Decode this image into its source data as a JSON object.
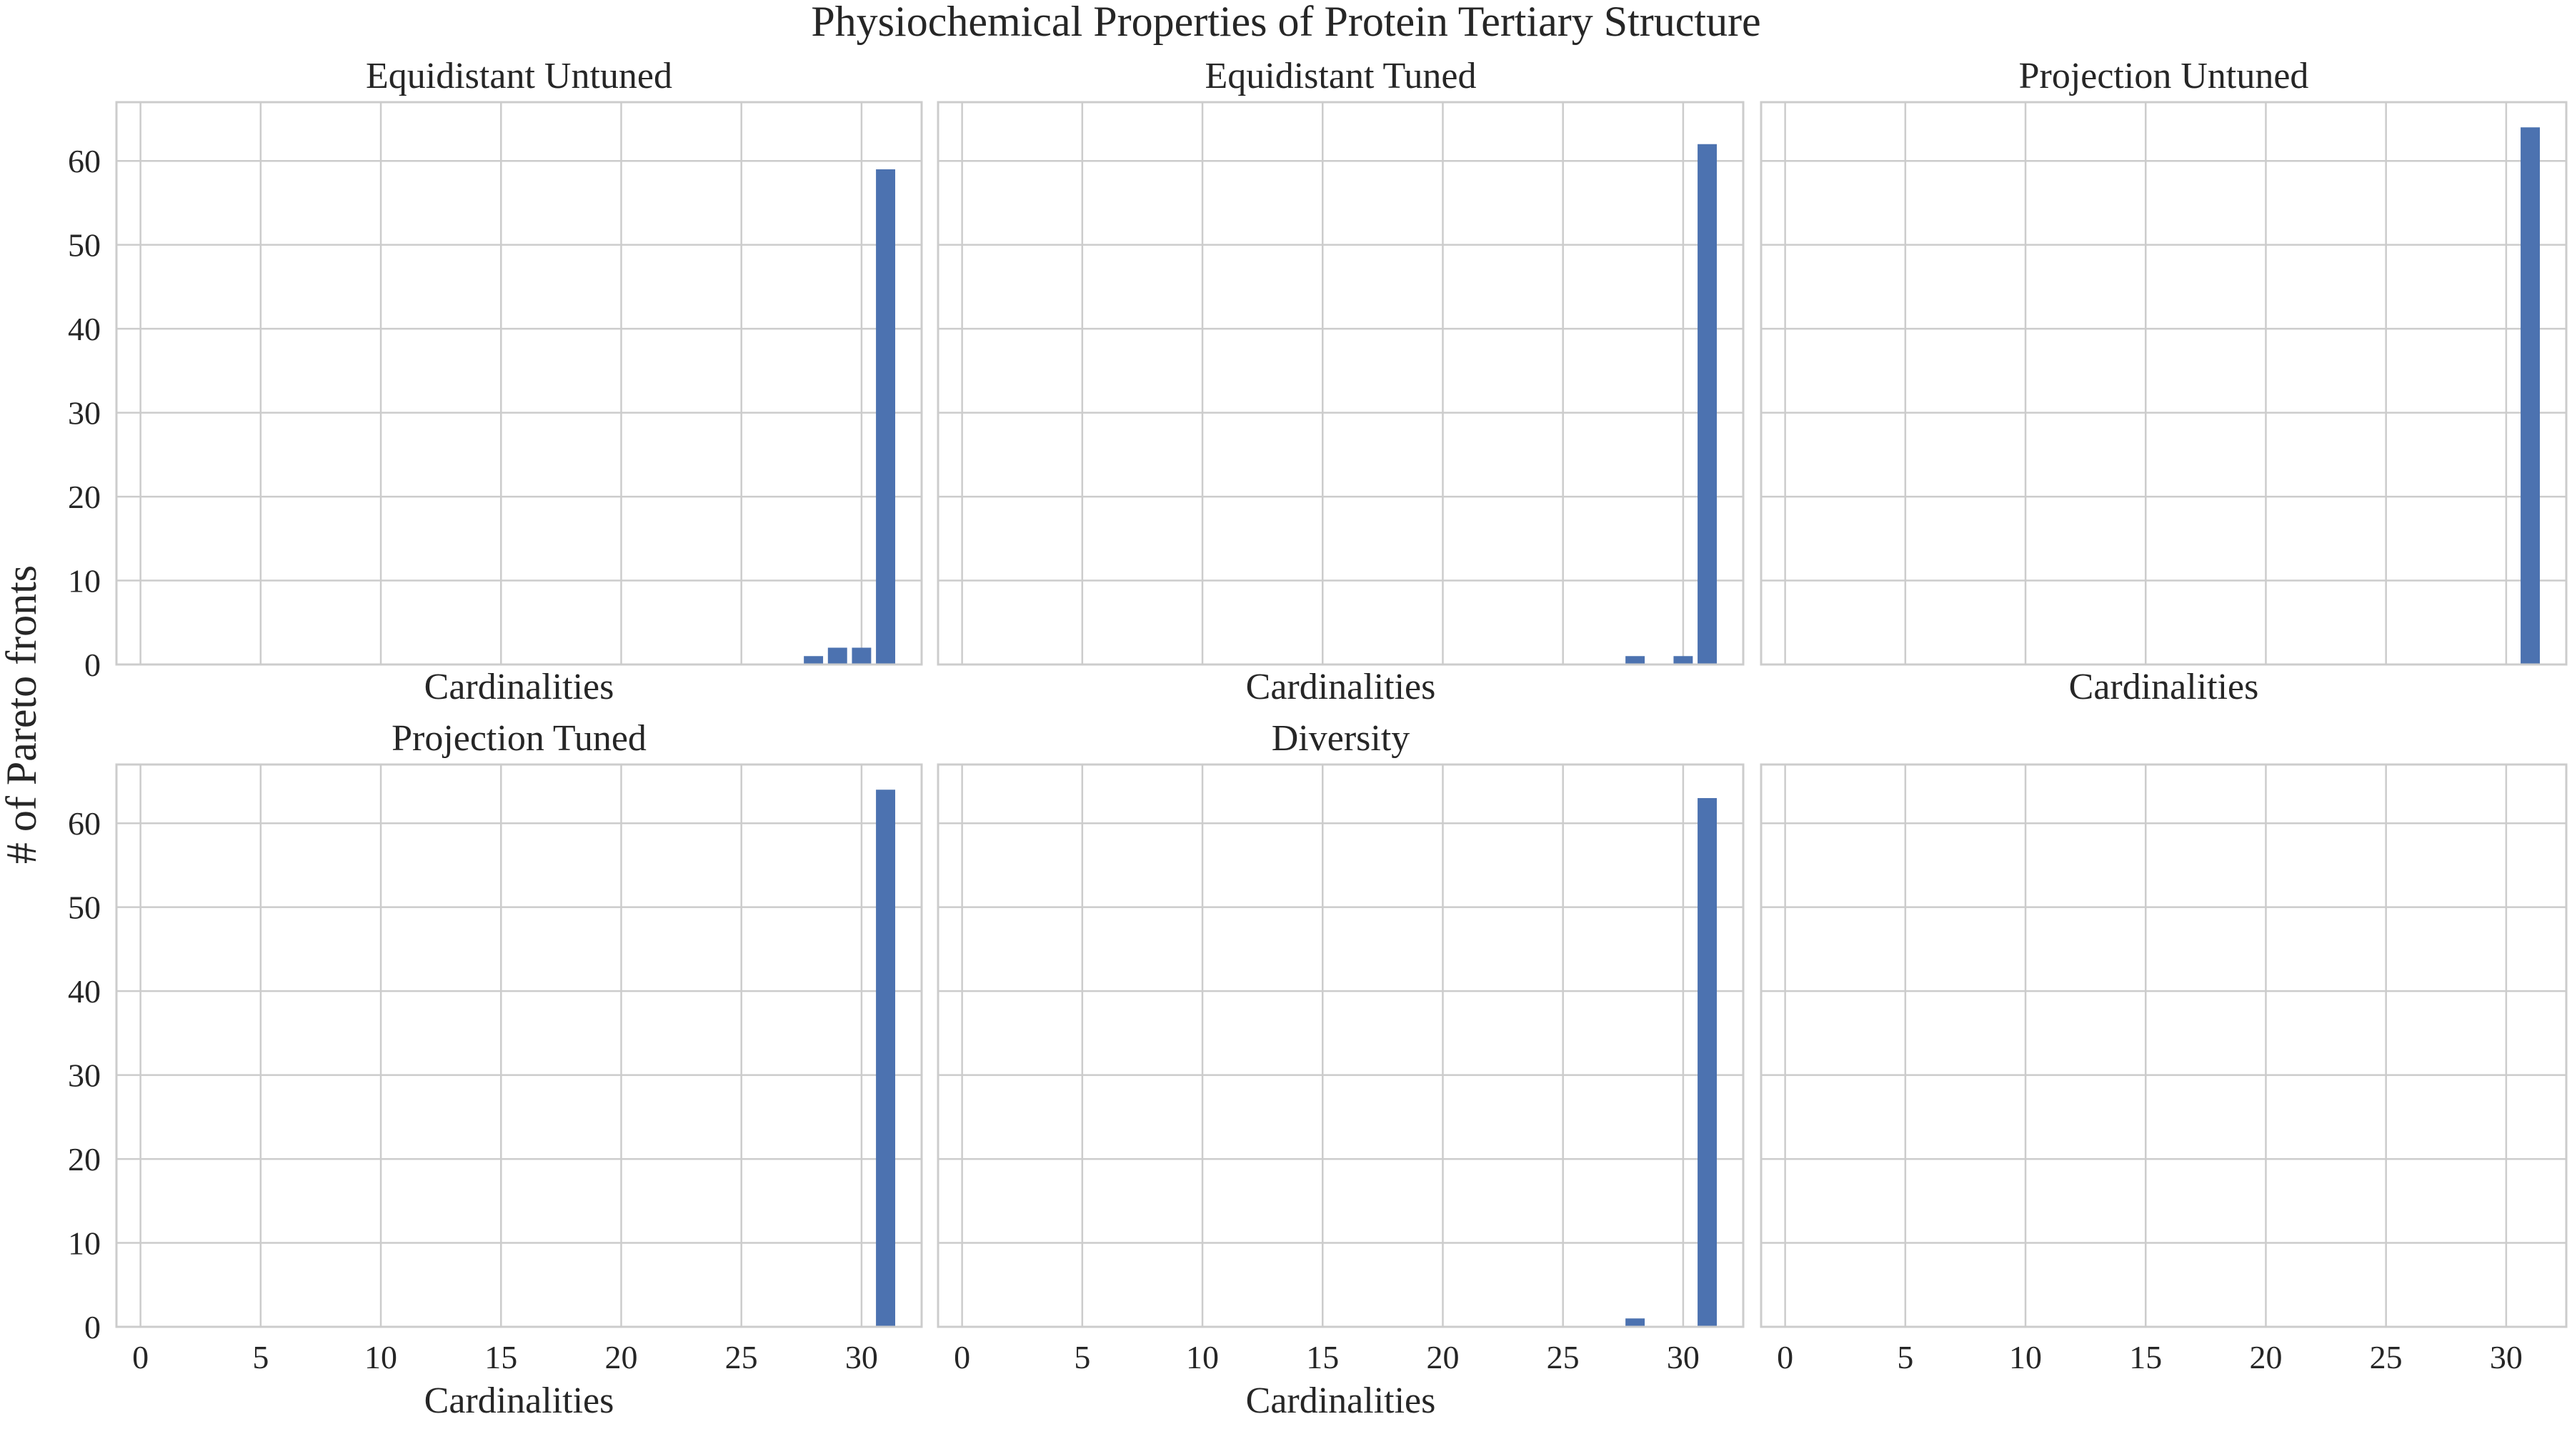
{
  "figure": {
    "title": "Physiochemical Properties of Protein Tertiary Structure",
    "ylabel": "# of Pareto fronts"
  },
  "colors": {
    "bar": "#4c72b0",
    "grid": "#cccccc",
    "frame": "#cccccc",
    "text": "#262626",
    "background": "#ffffff"
  },
  "chart_data": [
    {
      "type": "bar",
      "title": "Equidistant Untuned",
      "xlabel": "Cardinalities",
      "ylabel": "# of Pareto fronts",
      "x": [
        28,
        29,
        30,
        31
      ],
      "values": [
        1,
        2,
        2,
        59
      ],
      "xlim": [
        -1,
        32.5
      ],
      "ylim": [
        0,
        67
      ],
      "xticks": [
        0,
        5,
        10,
        15,
        20,
        25,
        30
      ],
      "yticks": [
        0,
        10,
        20,
        30,
        40,
        50,
        60
      ],
      "show_xticklabels": false,
      "show_yticklabels": true,
      "grid": true
    },
    {
      "type": "bar",
      "title": "Equidistant Tuned",
      "xlabel": "Cardinalities",
      "ylabel": "",
      "x": [
        28,
        30,
        31
      ],
      "values": [
        1,
        1,
        62
      ],
      "xlim": [
        -1,
        32.5
      ],
      "ylim": [
        0,
        67
      ],
      "xticks": [
        0,
        5,
        10,
        15,
        20,
        25,
        30
      ],
      "yticks": [
        0,
        10,
        20,
        30,
        40,
        50,
        60
      ],
      "show_xticklabels": false,
      "show_yticklabels": false,
      "grid": true
    },
    {
      "type": "bar",
      "title": "Projection Untuned",
      "xlabel": "Cardinalities",
      "ylabel": "",
      "x": [
        31
      ],
      "values": [
        64
      ],
      "xlim": [
        -1,
        32.5
      ],
      "ylim": [
        0,
        67
      ],
      "xticks": [
        0,
        5,
        10,
        15,
        20,
        25,
        30
      ],
      "yticks": [
        0,
        10,
        20,
        30,
        40,
        50,
        60
      ],
      "show_xticklabels": false,
      "show_yticklabels": false,
      "grid": true
    },
    {
      "type": "bar",
      "title": "Projection Tuned",
      "xlabel": "Cardinalities",
      "ylabel": "# of Pareto fronts",
      "x": [
        31
      ],
      "values": [
        64
      ],
      "xlim": [
        -1,
        32.5
      ],
      "ylim": [
        0,
        67
      ],
      "xticks": [
        0,
        5,
        10,
        15,
        20,
        25,
        30
      ],
      "yticks": [
        0,
        10,
        20,
        30,
        40,
        50,
        60
      ],
      "show_xticklabels": true,
      "show_yticklabels": true,
      "grid": true
    },
    {
      "type": "bar",
      "title": "Diversity",
      "xlabel": "Cardinalities",
      "ylabel": "",
      "x": [
        28,
        31
      ],
      "values": [
        1,
        63
      ],
      "xlim": [
        -1,
        32.5
      ],
      "ylim": [
        0,
        67
      ],
      "xticks": [
        0,
        5,
        10,
        15,
        20,
        25,
        30
      ],
      "yticks": [
        0,
        10,
        20,
        30,
        40,
        50,
        60
      ],
      "show_xticklabels": true,
      "show_yticklabels": false,
      "grid": true
    },
    {
      "type": "bar",
      "title": "",
      "xlabel": "",
      "ylabel": "",
      "x": [],
      "values": [],
      "xlim": [
        -1,
        32.5
      ],
      "ylim": [
        0,
        67
      ],
      "xticks": [
        0,
        5,
        10,
        15,
        20,
        25,
        30
      ],
      "yticks": [
        0,
        10,
        20,
        30,
        40,
        50,
        60
      ],
      "show_xticklabels": true,
      "show_yticklabels": false,
      "grid": true
    }
  ]
}
